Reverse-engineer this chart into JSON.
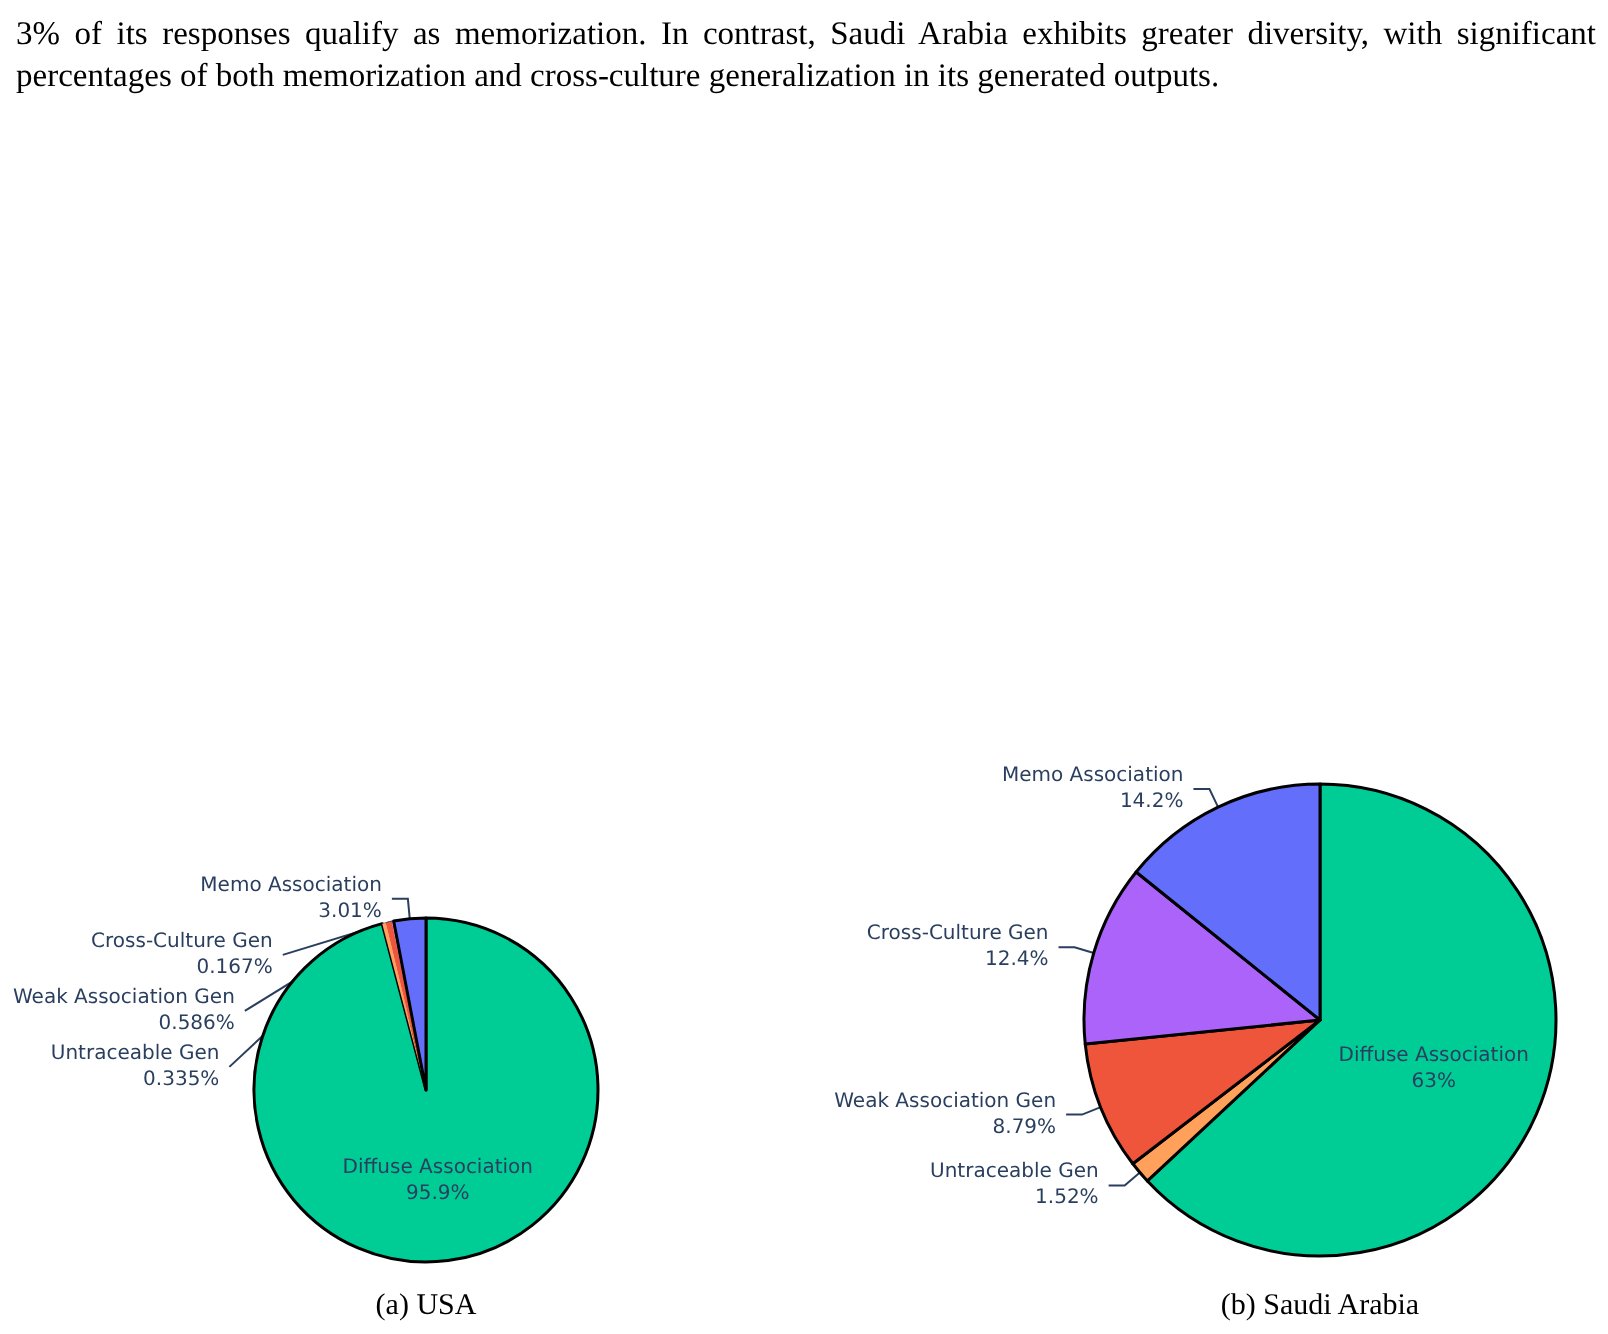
{
  "chart_data": [
    {
      "type": "pie",
      "title": "(a) USA",
      "categories": [
        "Diffuse Association",
        "Untraceable Gen",
        "Weak Association Gen",
        "Cross-Culture Gen",
        "Memo Association"
      ],
      "values": [
        95.9,
        0.335,
        0.586,
        0.167,
        3.01
      ],
      "value_labels": [
        "95.9%",
        "0.335%",
        "0.586%",
        "0.167%",
        "3.01%"
      ],
      "colors": [
        "#00cc96",
        "#ffa15a",
        "#ef553b",
        "#ab63fa",
        "#636efa"
      ],
      "annotations": [
        "3% of its responses qualify as memorization.  In contrast, Saudi Arabia exhibits greater diversity, with significant percentages of both memorization and cross-culture generalization in its generated outputs."
      ]
    },
    {
      "type": "pie",
      "title": "(b) Saudi Arabia",
      "categories": [
        "Diffuse Association",
        "Untraceable Gen",
        "Weak Association Gen",
        "Cross-Culture Gen",
        "Memo Association"
      ],
      "values": [
        63,
        1.52,
        8.79,
        12.4,
        14.2
      ],
      "value_labels": [
        "63%",
        "1.52%",
        "8.79%",
        "12.4%",
        "14.2%"
      ],
      "colors": [
        "#00cc96",
        "#ffa15a",
        "#ef553b",
        "#ab63fa",
        "#636efa"
      ]
    }
  ]
}
